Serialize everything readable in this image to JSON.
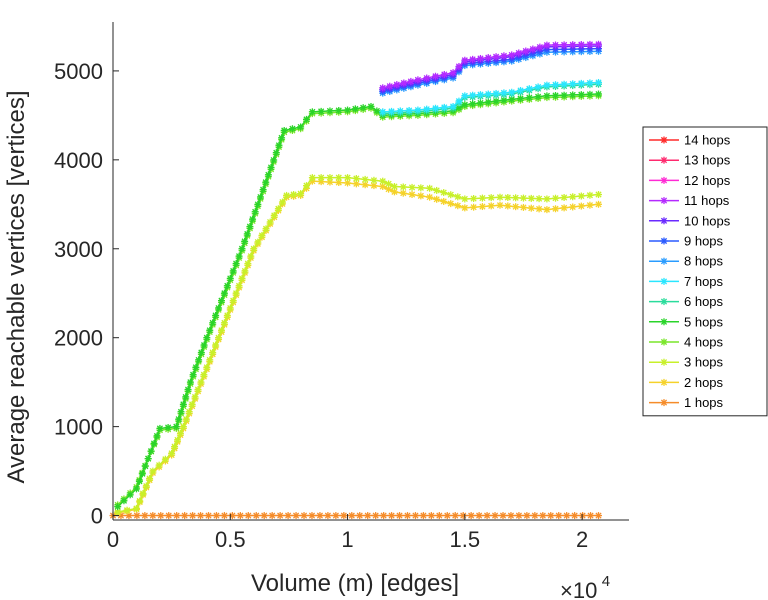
{
  "chart_data": {
    "type": "line",
    "title": "",
    "xlabel": "Volume (m) [edges]",
    "ylabel": "Average reachable vertices [vertices]",
    "xlim": [
      0,
      2.2
    ],
    "ylim": [
      -50,
      5550
    ],
    "x_multiplier": {
      "base": "×10",
      "exponent": "4"
    },
    "xticks": [
      {
        "value": 0,
        "label": "0"
      },
      {
        "value": 0.5,
        "label": "0.5"
      },
      {
        "value": 1,
        "label": "1"
      },
      {
        "value": 1.5,
        "label": "1.5"
      },
      {
        "value": 2,
        "label": "2"
      }
    ],
    "yticks": [
      {
        "value": 0,
        "label": "0"
      },
      {
        "value": 1000,
        "label": "1000"
      },
      {
        "value": 2000,
        "label": "2000"
      },
      {
        "value": 3000,
        "label": "3000"
      },
      {
        "value": 4000,
        "label": "4000"
      },
      {
        "value": 5000,
        "label": "5000"
      }
    ],
    "grid": false,
    "legend_position": "right",
    "series": [
      {
        "name": "14 hops",
        "color": "#ff2a2a",
        "points": []
      },
      {
        "name": "13 hops",
        "color": "#ff2a6e",
        "points": []
      },
      {
        "name": "12 hops",
        "color": "#ff2ad4",
        "points": []
      },
      {
        "name": "11 hops",
        "color": "#b42aff",
        "points": [
          [
            1.15,
            4810
          ],
          [
            1.3,
            4900
          ],
          [
            1.45,
            4980
          ],
          [
            1.5,
            5120
          ],
          [
            1.7,
            5180
          ],
          [
            1.85,
            5290
          ],
          [
            2.07,
            5300
          ]
        ]
      },
      {
        "name": "10 hops",
        "color": "#6a2aff",
        "points": [
          [
            1.15,
            4790
          ],
          [
            1.3,
            4880
          ],
          [
            1.45,
            4960
          ],
          [
            1.5,
            5100
          ],
          [
            1.7,
            5160
          ],
          [
            1.85,
            5270
          ],
          [
            2.07,
            5280
          ]
        ]
      },
      {
        "name": "9 hops",
        "color": "#2a5aff",
        "points": [
          [
            1.15,
            4770
          ],
          [
            1.3,
            4860
          ],
          [
            1.45,
            4940
          ],
          [
            1.5,
            5080
          ],
          [
            1.7,
            5130
          ],
          [
            1.85,
            5240
          ],
          [
            2.07,
            5250
          ]
        ]
      },
      {
        "name": "8 hops",
        "color": "#2a9cff",
        "points": [
          [
            1.15,
            4750
          ],
          [
            1.3,
            4840
          ],
          [
            1.45,
            4920
          ],
          [
            1.5,
            5060
          ],
          [
            1.7,
            5110
          ],
          [
            1.85,
            5210
          ],
          [
            2.07,
            5220
          ]
        ]
      },
      {
        "name": "7 hops",
        "color": "#2ae6ff",
        "points": [
          [
            1.15,
            4540
          ],
          [
            1.3,
            4560
          ],
          [
            1.45,
            4600
          ],
          [
            1.5,
            4720
          ],
          [
            1.7,
            4760
          ],
          [
            1.85,
            4840
          ],
          [
            2.07,
            4870
          ]
        ]
      },
      {
        "name": "6 hops",
        "color": "#2adc9c",
        "points": [
          [
            1.15,
            4520
          ],
          [
            1.3,
            4540
          ],
          [
            1.45,
            4580
          ],
          [
            1.5,
            4700
          ],
          [
            1.7,
            4740
          ],
          [
            1.85,
            4820
          ],
          [
            2.07,
            4850
          ]
        ]
      },
      {
        "name": "5 hops",
        "color": "#2ad42a",
        "points": [
          [
            0.02,
            100
          ],
          [
            0.1,
            300
          ],
          [
            0.2,
            980
          ],
          [
            0.27,
            1000
          ],
          [
            0.33,
            1500
          ],
          [
            0.4,
            2000
          ],
          [
            0.55,
            3000
          ],
          [
            0.73,
            4330
          ],
          [
            0.8,
            4370
          ],
          [
            0.85,
            4540
          ],
          [
            1.0,
            4560
          ],
          [
            1.1,
            4600
          ],
          [
            1.15,
            4500
          ],
          [
            1.3,
            4520
          ],
          [
            1.45,
            4550
          ],
          [
            1.5,
            4620
          ],
          [
            1.7,
            4680
          ],
          [
            1.85,
            4720
          ],
          [
            2.07,
            4740
          ]
        ]
      },
      {
        "name": "4 hops",
        "color": "#7ae62a",
        "points": [
          [
            0.02,
            120
          ],
          [
            0.1,
            320
          ],
          [
            0.2,
            960
          ],
          [
            0.27,
            980
          ],
          [
            0.33,
            1480
          ],
          [
            0.4,
            1980
          ],
          [
            0.55,
            2980
          ],
          [
            0.73,
            4310
          ],
          [
            0.8,
            4350
          ],
          [
            0.85,
            4520
          ],
          [
            1.0,
            4540
          ],
          [
            1.1,
            4580
          ],
          [
            1.15,
            4480
          ],
          [
            1.3,
            4500
          ],
          [
            1.45,
            4530
          ],
          [
            1.5,
            4600
          ],
          [
            1.7,
            4660
          ],
          [
            1.85,
            4700
          ],
          [
            2.07,
            4720
          ]
        ]
      },
      {
        "name": "3 hops",
        "color": "#c8f02a",
        "points": [
          [
            0.02,
            40
          ],
          [
            0.1,
            80
          ],
          [
            0.17,
            500
          ],
          [
            0.25,
            700
          ],
          [
            0.3,
            1000
          ],
          [
            0.45,
            2000
          ],
          [
            0.6,
            3000
          ],
          [
            0.74,
            3600
          ],
          [
            0.8,
            3620
          ],
          [
            0.85,
            3800
          ],
          [
            1.0,
            3800
          ],
          [
            1.15,
            3760
          ],
          [
            1.2,
            3700
          ],
          [
            1.35,
            3680
          ],
          [
            1.5,
            3560
          ],
          [
            1.65,
            3580
          ],
          [
            1.85,
            3560
          ],
          [
            2.07,
            3610
          ]
        ]
      },
      {
        "name": "2 hops",
        "color": "#f5d22a",
        "points": [
          [
            0.02,
            30
          ],
          [
            0.1,
            70
          ],
          [
            0.17,
            480
          ],
          [
            0.25,
            680
          ],
          [
            0.3,
            980
          ],
          [
            0.45,
            1980
          ],
          [
            0.6,
            2980
          ],
          [
            0.74,
            3580
          ],
          [
            0.8,
            3600
          ],
          [
            0.85,
            3760
          ],
          [
            1.0,
            3740
          ],
          [
            1.15,
            3700
          ],
          [
            1.2,
            3640
          ],
          [
            1.35,
            3580
          ],
          [
            1.5,
            3460
          ],
          [
            1.65,
            3490
          ],
          [
            1.85,
            3440
          ],
          [
            2.07,
            3500
          ]
        ]
      },
      {
        "name": "1 hops",
        "color": "#f58c2a",
        "points": [
          [
            0.0,
            0
          ],
          [
            2.07,
            0
          ]
        ]
      }
    ]
  }
}
